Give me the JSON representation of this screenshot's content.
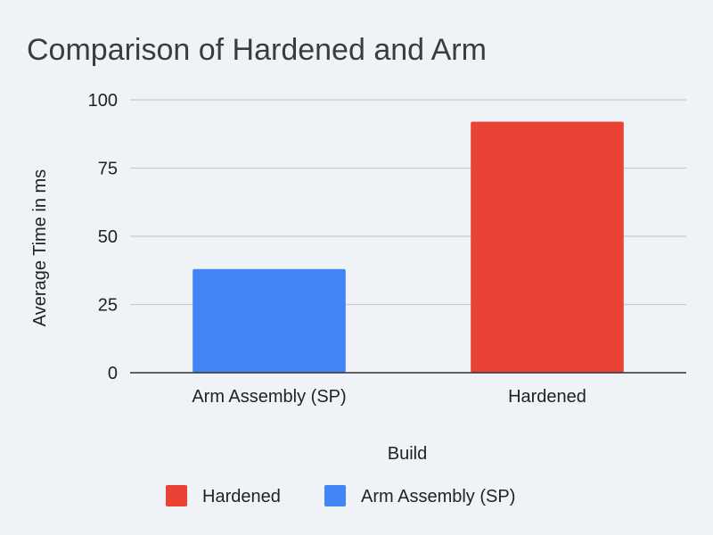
{
  "chart_data": {
    "type": "bar",
    "title": "Comparison of Hardened and Arm",
    "xlabel": "Build",
    "ylabel": "Average Time in ms",
    "categories": [
      "Arm Assembly (SP)",
      "Hardened"
    ],
    "values": [
      38,
      92
    ],
    "colors": [
      "#4285f4",
      "#ea4335"
    ],
    "ylim": [
      0,
      100
    ],
    "yticks": [
      0,
      25,
      50,
      75,
      100
    ],
    "grid": true,
    "legend": {
      "placement": "bottom",
      "entries": [
        {
          "label": "Hardened",
          "color": "#ea4335"
        },
        {
          "label": "Arm Assembly (SP)",
          "color": "#4285f4"
        }
      ]
    }
  }
}
